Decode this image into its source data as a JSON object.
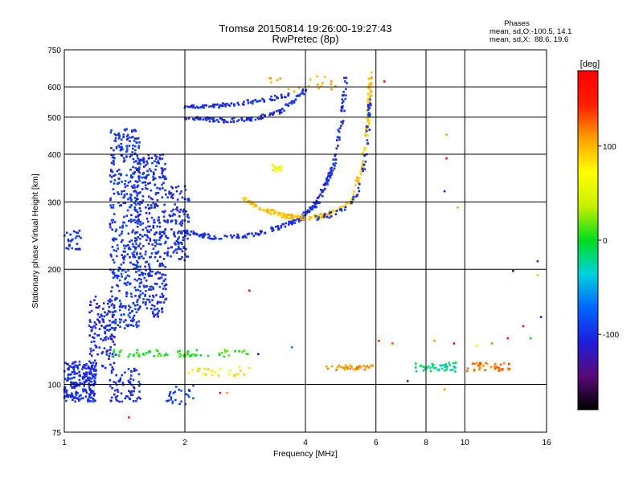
{
  "chart_data": {
    "type": "scatter",
    "title": "Tromsø 20150814 19:26:00-19:27:43",
    "subtitle": "RwPretec (8p)",
    "xlabel": "Frequency [MHz]",
    "ylabel": "Stationary phase Virtual Height [km]",
    "x_scale": "log",
    "y_scale": "log",
    "xlim": [
      1,
      16
    ],
    "ylim": [
      75,
      750
    ],
    "x_ticks": [
      1,
      2,
      4,
      6,
      8,
      10,
      16
    ],
    "y_ticks": [
      75,
      100,
      200,
      300,
      400,
      500,
      600,
      750
    ],
    "grid": true,
    "stats": {
      "heading": "Phases",
      "o_line": "mean, sd,O:-100.5, 14.1",
      "x_line": "mean, sd,X:  88.6, 19.6"
    },
    "colorbar": {
      "label": "[deg]",
      "range": [
        -180,
        180
      ],
      "ticks": [
        100,
        0,
        -100
      ],
      "palette": [
        "#000000",
        "#5a0a78",
        "#1e1edc",
        "#0064ff",
        "#00d2dc",
        "#00dc1e",
        "#c8f000",
        "#ffff00",
        "#ffa000",
        "#ff1e00",
        "#ff0000"
      ]
    },
    "traces": [
      {
        "type": "band",
        "x": [
          1.0,
          1.2
        ],
        "y": [
          90,
          115
        ],
        "phase": -100,
        "count": 220
      },
      {
        "type": "band",
        "x": [
          1.15,
          1.35
        ],
        "y": [
          110,
          170
        ],
        "phase": -105,
        "count": 130
      },
      {
        "type": "band",
        "x": [
          1.3,
          1.55
        ],
        "y": [
          140,
          470
        ],
        "phase": -95,
        "count": 420
      },
      {
        "type": "band",
        "x": [
          1.5,
          1.8
        ],
        "y": [
          150,
          400
        ],
        "phase": -100,
        "count": 380
      },
      {
        "type": "band",
        "x": [
          1.8,
          2.05
        ],
        "y": [
          210,
          330
        ],
        "phase": -100,
        "count": 120
      },
      {
        "type": "band",
        "x": [
          1.3,
          1.55
        ],
        "y": [
          90,
          110
        ],
        "phase": -100,
        "count": 70
      },
      {
        "type": "band",
        "x": [
          1.0,
          1.1
        ],
        "y": [
          225,
          255
        ],
        "phase": -100,
        "count": 30
      },
      {
        "type": "band",
        "x": [
          1.8,
          2.1
        ],
        "y": [
          88,
          100
        ],
        "phase": -90,
        "count": 25
      },
      {
        "type": "curve",
        "x": [
          2.0,
          2.4,
          2.9,
          3.4,
          3.9,
          4.3,
          4.7,
          4.95,
          5.05
        ],
        "y": [
          250,
          242,
          245,
          256,
          272,
          300,
          370,
          500,
          640
        ],
        "phase": -100,
        "count": 230
      },
      {
        "type": "curve",
        "x": [
          2.8,
          3.2,
          3.6,
          4.0,
          4.6,
          5.2,
          5.55,
          5.75,
          5.82
        ],
        "y": [
          305,
          285,
          275,
          272,
          278,
          300,
          370,
          500,
          650
        ],
        "phase": 95,
        "count": 230
      },
      {
        "type": "curve",
        "x": [
          4.2,
          4.6,
          5.1,
          5.5,
          5.7,
          5.8
        ],
        "y": [
          272,
          277,
          290,
          330,
          420,
          560
        ],
        "phase": -95,
        "count": 60
      },
      {
        "type": "curve",
        "x": [
          2.0,
          2.5,
          3.0,
          3.5,
          4.0
        ],
        "y": [
          500,
          490,
          495,
          520,
          590
        ],
        "phase": -100,
        "count": 110
      },
      {
        "type": "curve",
        "x": [
          2.0,
          2.4,
          2.8,
          3.3,
          3.7
        ],
        "y": [
          530,
          535,
          545,
          560,
          575
        ],
        "phase": -100,
        "count": 80
      },
      {
        "type": "band",
        "x": [
          1.3,
          2.9
        ],
        "y": [
          118,
          123
        ],
        "phase": 5,
        "count": 70
      },
      {
        "type": "band",
        "x": [
          2.0,
          2.9
        ],
        "y": [
          105,
          111
        ],
        "phase": 80,
        "count": 25
      },
      {
        "type": "band",
        "x": [
          4.5,
          6.0
        ],
        "y": [
          109,
          113
        ],
        "phase": 110,
        "count": 40
      },
      {
        "type": "band",
        "x": [
          7.5,
          9.5
        ],
        "y": [
          108,
          114
        ],
        "phase": -20,
        "count": 45
      },
      {
        "type": "band",
        "x": [
          10.0,
          13.0
        ],
        "y": [
          108,
          114
        ],
        "phase": 120,
        "count": 40
      },
      {
        "type": "band",
        "x": [
          3.2,
          4.8
        ],
        "y": [
          580,
          640
        ],
        "phase": 100,
        "count": 20
      },
      {
        "type": "band",
        "x": [
          3.3,
          3.5
        ],
        "y": [
          360,
          375
        ],
        "phase": 60,
        "count": 15
      }
    ],
    "scatter_points": [
      {
        "x": 6.3,
        "y": 620,
        "phase": 160
      },
      {
        "x": 6.1,
        "y": 130,
        "phase": 140
      },
      {
        "x": 7.2,
        "y": 102,
        "phase": -120
      },
      {
        "x": 9.0,
        "y": 450,
        "phase": 20
      },
      {
        "x": 9.0,
        "y": 390,
        "phase": 150
      },
      {
        "x": 8.9,
        "y": 320,
        "phase": -120
      },
      {
        "x": 9.6,
        "y": 290,
        "phase": 100
      },
      {
        "x": 8.9,
        "y": 97,
        "phase": 110
      },
      {
        "x": 15.2,
        "y": 210,
        "phase": -100
      },
      {
        "x": 15.2,
        "y": 193,
        "phase": 30
      },
      {
        "x": 13.2,
        "y": 198,
        "phase": -150
      },
      {
        "x": 14.0,
        "y": 142,
        "phase": 160
      },
      {
        "x": 15.5,
        "y": 150,
        "phase": -110
      },
      {
        "x": 14.6,
        "y": 132,
        "phase": 0
      },
      {
        "x": 12.8,
        "y": 132,
        "phase": 150
      },
      {
        "x": 11.7,
        "y": 128,
        "phase": 120
      },
      {
        "x": 10.7,
        "y": 126,
        "phase": 80
      },
      {
        "x": 9.4,
        "y": 128,
        "phase": 170
      },
      {
        "x": 8.4,
        "y": 130,
        "phase": 110
      },
      {
        "x": 6.6,
        "y": 128,
        "phase": 130
      },
      {
        "x": 3.7,
        "y": 125,
        "phase": -60
      },
      {
        "x": 1.45,
        "y": 82,
        "phase": 150
      },
      {
        "x": 2.45,
        "y": 95,
        "phase": 150
      },
      {
        "x": 2.55,
        "y": 95,
        "phase": 110
      },
      {
        "x": 3.05,
        "y": 120,
        "phase": -120
      },
      {
        "x": 2.9,
        "y": 176,
        "phase": 160
      }
    ]
  }
}
